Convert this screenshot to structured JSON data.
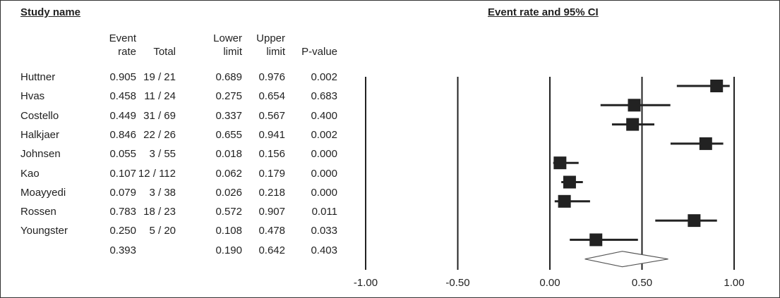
{
  "header": {
    "study_label": "Study name",
    "plot_label": "Event rate and 95% CI"
  },
  "columns": {
    "event_rate": [
      "Event",
      "rate"
    ],
    "total": [
      "",
      "Total"
    ],
    "lower": [
      "Lower",
      "limit"
    ],
    "upper": [
      "Upper",
      "limit"
    ],
    "p_value": [
      "",
      "P-value"
    ]
  },
  "chart_data": {
    "type": "forest",
    "title": "Event rate and 95% CI",
    "xlim": [
      -1.0,
      1.0
    ],
    "xticks": [
      -1.0,
      -0.5,
      0.0,
      0.5,
      1.0
    ],
    "xtick_labels": [
      "-1.00",
      "-0.50",
      "0.00",
      "0.50",
      "1.00"
    ],
    "studies": [
      {
        "name": "Huttner",
        "rate": 0.905,
        "total": "19 / 21",
        "lower": 0.689,
        "upper": 0.976,
        "p": "0.002",
        "rate_label": "0.905",
        "lower_label": "0.689",
        "upper_label": "0.976"
      },
      {
        "name": "Hvas",
        "rate": 0.458,
        "total": "11 / 24",
        "lower": 0.275,
        "upper": 0.654,
        "p": "0.683",
        "rate_label": "0.458",
        "lower_label": "0.275",
        "upper_label": "0.654"
      },
      {
        "name": "Costello",
        "rate": 0.449,
        "total": "31 / 69",
        "lower": 0.337,
        "upper": 0.567,
        "p": "0.400",
        "rate_label": "0.449",
        "lower_label": "0.337",
        "upper_label": "0.567"
      },
      {
        "name": "Halkjaer",
        "rate": 0.846,
        "total": "22 / 26",
        "lower": 0.655,
        "upper": 0.941,
        "p": "0.002",
        "rate_label": "0.846",
        "lower_label": "0.655",
        "upper_label": "0.941"
      },
      {
        "name": "Johnsen",
        "rate": 0.055,
        "total": "3 / 55",
        "lower": 0.018,
        "upper": 0.156,
        "p": "0.000",
        "rate_label": "0.055",
        "lower_label": "0.018",
        "upper_label": "0.156"
      },
      {
        "name": "Kao",
        "rate": 0.107,
        "total": "12 / 112",
        "lower": 0.062,
        "upper": 0.179,
        "p": "0.000",
        "rate_label": "0.107",
        "lower_label": "0.062",
        "upper_label": "0.179"
      },
      {
        "name": "Moayyedi",
        "rate": 0.079,
        "total": "3 / 38",
        "lower": 0.026,
        "upper": 0.218,
        "p": "0.000",
        "rate_label": "0.079",
        "lower_label": "0.026",
        "upper_label": "0.218"
      },
      {
        "name": "Rossen",
        "rate": 0.783,
        "total": "18 / 23",
        "lower": 0.572,
        "upper": 0.907,
        "p": "0.011",
        "rate_label": "0.783",
        "lower_label": "0.572",
        "upper_label": "0.907"
      },
      {
        "name": "Youngster",
        "rate": 0.25,
        "total": "5 / 20",
        "lower": 0.108,
        "upper": 0.478,
        "p": "0.033",
        "rate_label": "0.250",
        "lower_label": "0.108",
        "upper_label": "0.478"
      }
    ],
    "pooled": {
      "name": "",
      "rate": 0.393,
      "lower": 0.19,
      "upper": 0.642,
      "p": "0.403",
      "rate_label": "0.393",
      "lower_label": "0.190",
      "upper_label": "0.642"
    },
    "colors": {
      "marker": "#222222",
      "diamond_fill": "#ffffff",
      "line": "#222222"
    }
  }
}
